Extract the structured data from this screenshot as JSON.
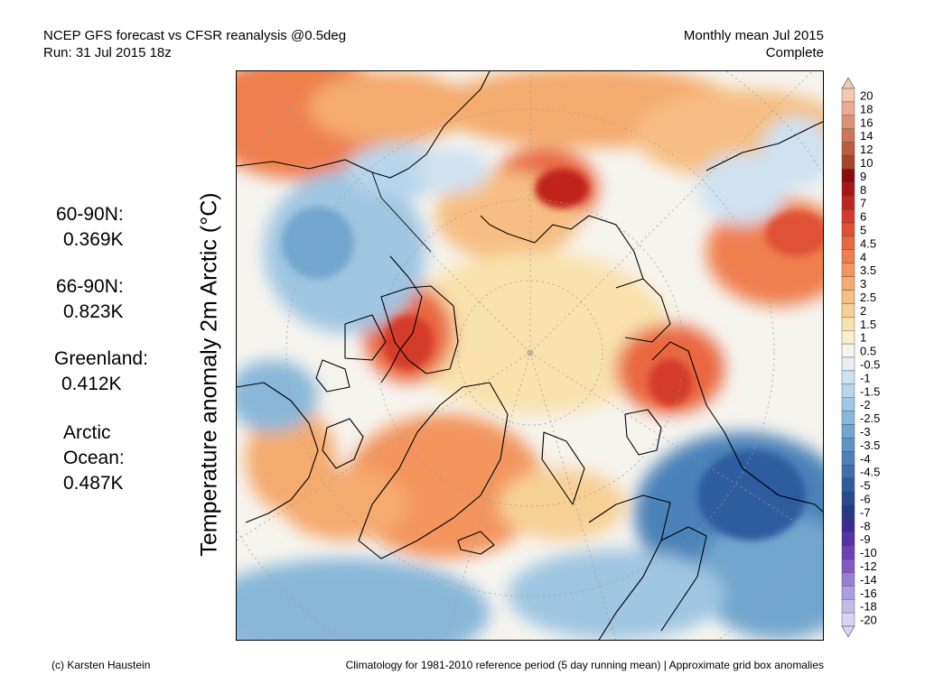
{
  "header": {
    "title_line1": "NCEP GFS forecast vs CFSR reanalysis @0.5deg",
    "title_line2": "Run: 31 Jul 2015 18z",
    "period_line1": "Monthly mean Jul 2015",
    "period_line2": "Complete"
  },
  "axis_label": "Temperature anomaly 2m Arctic (°C)",
  "stats": [
    {
      "label": "60-90N:",
      "value": "0.369K"
    },
    {
      "label": "66-90N:",
      "value": "0.823K"
    },
    {
      "label": "Greenland:",
      "value": "0.412K"
    },
    {
      "label": "Arctic Ocean:",
      "label_line1": "Arctic",
      "label_line2": "Ocean:",
      "value": "0.487K"
    }
  ],
  "colorbar": {
    "labels": [
      "20",
      "18",
      "16",
      "14",
      "12",
      "10",
      "9",
      "8",
      "7",
      "6",
      "5",
      "4.5",
      "4",
      "3.5",
      "3",
      "2.5",
      "2",
      "1.5",
      "1",
      "0.5",
      "-0.5",
      "-1",
      "-1.5",
      "-2",
      "-2.5",
      "-3",
      "-3.5",
      "-4",
      "-4.5",
      "-5",
      "-6",
      "-7",
      "-8",
      "-9",
      "-10",
      "-12",
      "-14",
      "-16",
      "-18",
      "-20"
    ],
    "colors": [
      "#f2c8b4",
      "#e8ab94",
      "#dc9175",
      "#cd7656",
      "#bc5d3f",
      "#a64528",
      "#8e0c10",
      "#a81418",
      "#c0241e",
      "#d43a2c",
      "#e05134",
      "#e9683f",
      "#ef7f4d",
      "#f3955d",
      "#f5ab6e",
      "#f6be82",
      "#f7d096",
      "#f9e1ad",
      "#fbefcb",
      "#f6f4ef",
      "#e7eff6",
      "#cfe2f0",
      "#b7d5ea",
      "#9fc6e2",
      "#88b7d9",
      "#72a6ce",
      "#5e94c3",
      "#4c82b8",
      "#3c6fac",
      "#2f5ca0",
      "#284a93",
      "#253a86",
      "#3c2b96",
      "#5630a6",
      "#6d40b6",
      "#8258c4",
      "#977ed2",
      "#ab9ede",
      "#c3bce8",
      "#d9d4f2"
    ],
    "top_cap_color": "#f2c8b4",
    "bottom_cap_color": "#d9d4f2"
  },
  "map": {
    "projection": "north-polar-stereographic",
    "colors": {
      "ocean_neutral": "#f6f4ef",
      "warm_light": "#f9e1ad",
      "warm_mid": "#f5ab6e",
      "warm_strong": "#e9683f",
      "warm_extreme": "#c0241e",
      "cold_light": "#cfe2f0",
      "cold_mid": "#88b7d9",
      "cold_strong": "#4c82b8",
      "cold_extreme": "#2f5ca0",
      "coastline": "#000000",
      "graticule": "#9a9a9a"
    }
  },
  "footer": {
    "credit": "(c) Karsten Haustein",
    "note": "Climatology for 1981-2010 reference period (5 day running mean) | Approximate grid box anomalies"
  }
}
